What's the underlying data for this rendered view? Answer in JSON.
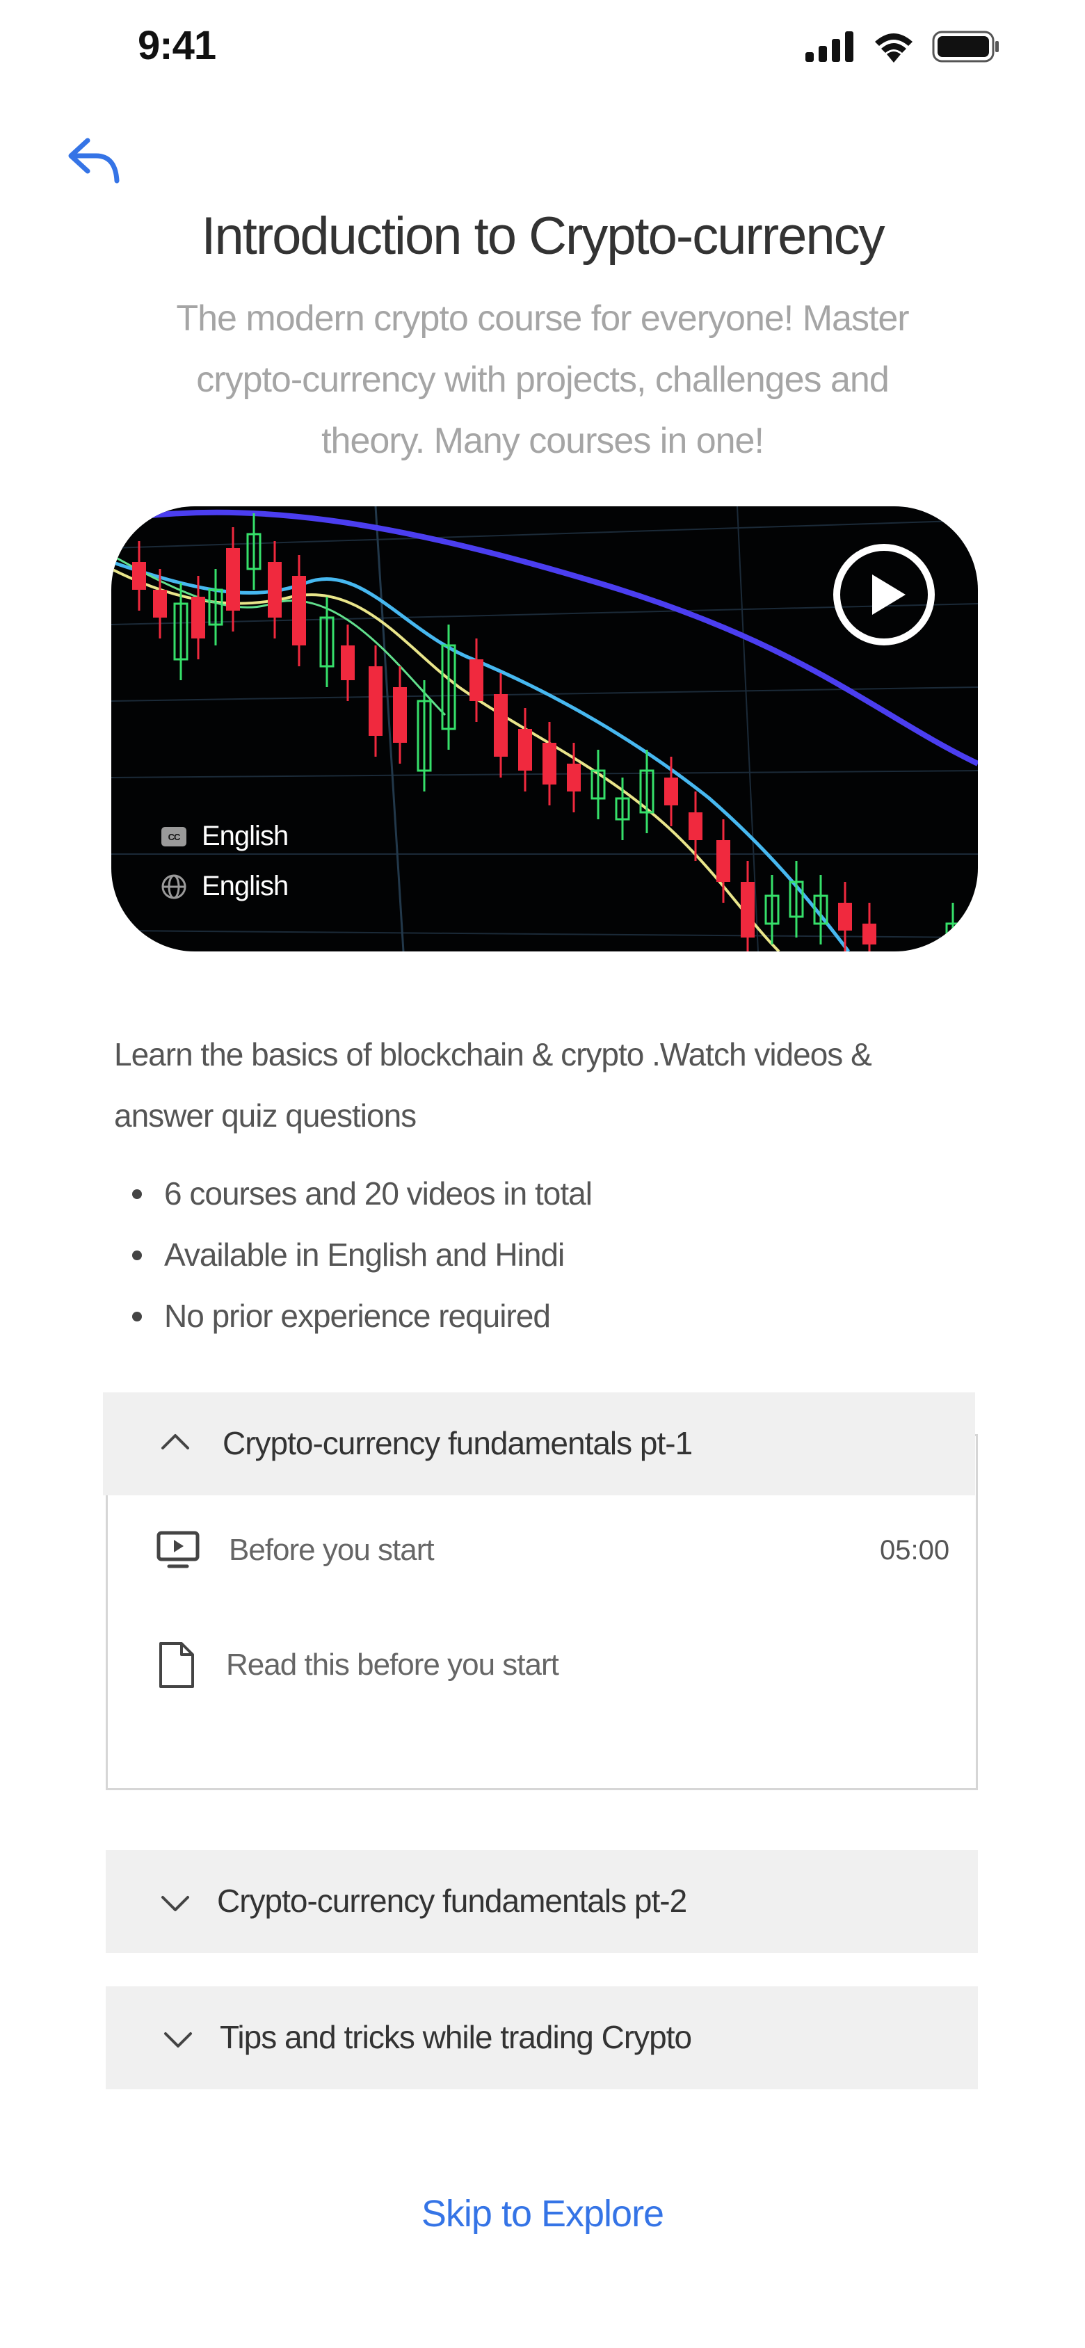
{
  "status_bar": {
    "time": "9:41"
  },
  "course": {
    "title": "Introduction to Crypto-currency",
    "subtitle": "The modern crypto course for everyone! Master crypto-currency with projects, challenges and theory. Many courses in one!"
  },
  "video": {
    "subtitle_language": "English",
    "audio_language": "English",
    "subtitle_icon": "closed-captions-icon",
    "audio_icon": "globe-icon"
  },
  "description": "Learn the basics of blockchain & crypto .Watch videos & answer quiz questions",
  "features": [
    "6 courses and  20 videos in total",
    "Available in English and Hindi",
    "No prior experience required"
  ],
  "sections": [
    {
      "title": "Crypto-currency fundamentals pt-1",
      "expanded": true,
      "lessons": [
        {
          "label": "Before you start",
          "duration": "05:00",
          "icon": "video-lesson-icon"
        },
        {
          "label": "Read this before you start",
          "duration": "",
          "icon": "document-icon"
        }
      ]
    },
    {
      "title": "Crypto-currency fundamentals pt-2",
      "expanded": false
    },
    {
      "title": "Tips and tricks while trading Crypto",
      "expanded": false
    }
  ],
  "skip_link": "Skip to Explore",
  "colors": {
    "accent": "#3574e6",
    "accordion_bg": "#f0f0f0",
    "subtitle": "#a5a5a5"
  }
}
